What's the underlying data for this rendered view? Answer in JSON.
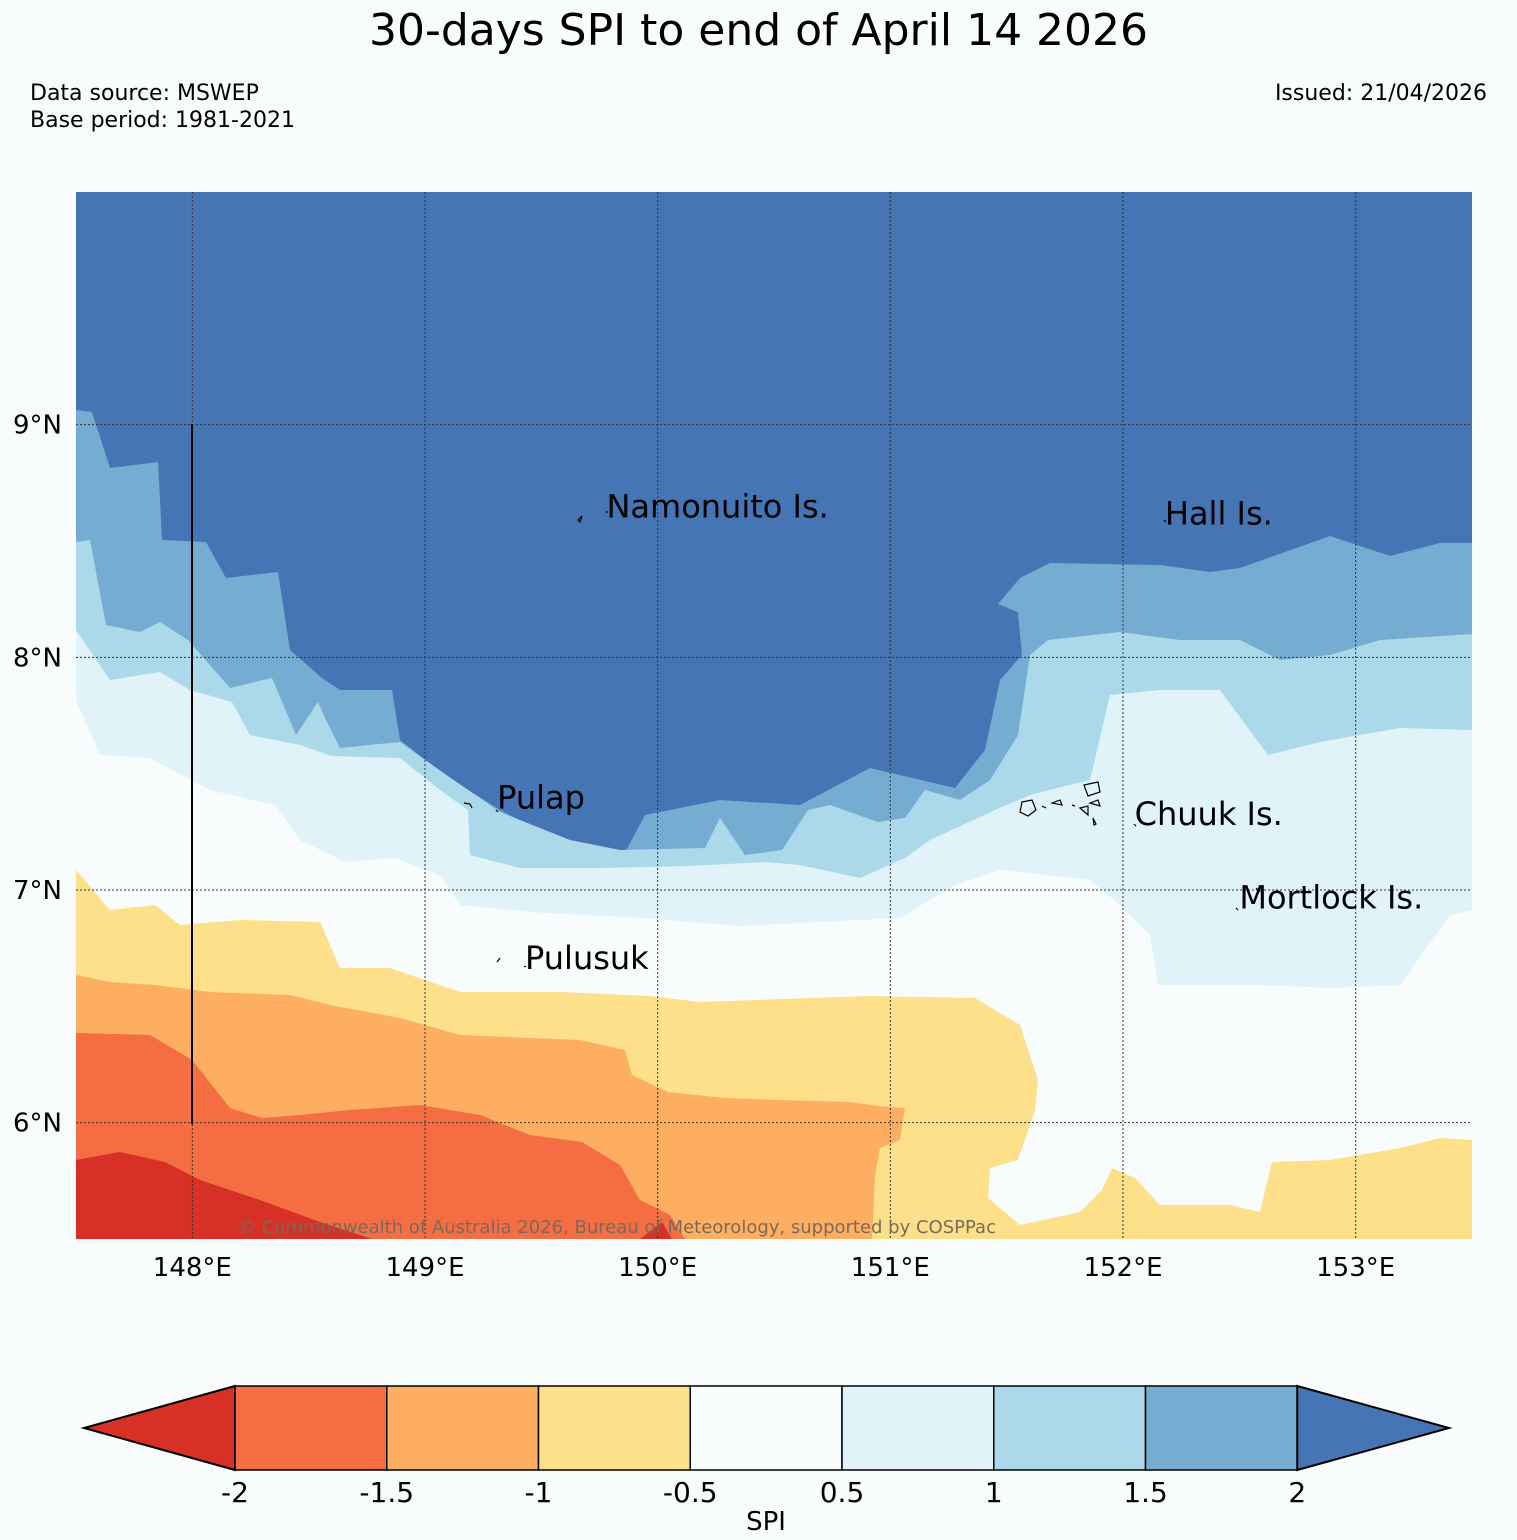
{
  "title": "30-days SPI to end of April 14 2026",
  "data_source": "Data source: MSWEP",
  "base_period": "Base period: 1981-2021",
  "issued": "Issued: 21/04/2026",
  "copyright": "© Commonwealth of Australia 2026, Bureau of Meteorology, supported by COSPPac",
  "map": {
    "lon_range": [
      147.5,
      153.5
    ],
    "lat_range": [
      5.5,
      10.0
    ],
    "lon_ticks": [
      {
        "value": 148,
        "label": "148°E"
      },
      {
        "value": 149,
        "label": "149°E"
      },
      {
        "value": 150,
        "label": "150°E"
      },
      {
        "value": 151,
        "label": "151°E"
      },
      {
        "value": 152,
        "label": "152°E"
      },
      {
        "value": 153,
        "label": "153°E"
      }
    ],
    "lat_ticks": [
      {
        "value": 9,
        "label": "9°N"
      },
      {
        "value": 8,
        "label": "8°N"
      },
      {
        "value": 7,
        "label": "7°N"
      },
      {
        "value": 6,
        "label": "6°N"
      }
    ],
    "places": [
      {
        "name": "Namonuito Is.",
        "lon": 149.78,
        "lat": 8.6
      },
      {
        "name": "Hall Is.",
        "lon": 152.18,
        "lat": 8.57
      },
      {
        "name": "Pulap",
        "lon": 149.31,
        "lat": 7.35
      },
      {
        "name": "Chuuk Is.",
        "lon": 152.05,
        "lat": 7.28
      },
      {
        "name": "Mortlock Is.",
        "lon": 152.5,
        "lat": 6.92
      },
      {
        "name": "Pulusuk",
        "lon": 149.43,
        "lat": 6.66
      }
    ]
  },
  "colorbar": {
    "label": "SPI",
    "ticks": [
      "-2",
      "-1.5",
      "-1",
      "-0.5",
      "0.5",
      "1",
      "1.5",
      "2"
    ],
    "bins": [
      {
        "range": "< -2",
        "color": "#d73027"
      },
      {
        "range": "-2 to -1.5",
        "color": "#f46d43"
      },
      {
        "range": "-1.5 to -1",
        "color": "#fdae61"
      },
      {
        "range": "-1 to -0.5",
        "color": "#fee08b"
      },
      {
        "range": "-0.5 to 0.5",
        "color": "#f8fcfd"
      },
      {
        "range": "0.5 to 1",
        "color": "#e0f3f8"
      },
      {
        "range": "1 to 1.5",
        "color": "#abd9e9"
      },
      {
        "range": "1.5 to 2",
        "color": "#74add1"
      },
      {
        "range": "> 2",
        "color": "#4575b4"
      }
    ]
  }
}
